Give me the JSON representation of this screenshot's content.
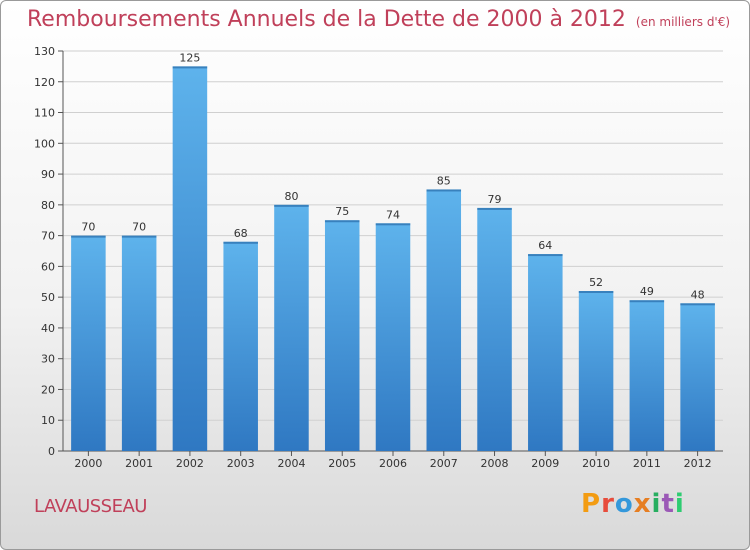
{
  "header": {
    "title": "Remboursements Annuels de la Dette de 2000 à 2012",
    "subtitle": "(en milliers d'€)"
  },
  "footer": {
    "commune": "LAVAUSSEAU",
    "logo_text": "Proxiti",
    "logo_colors": [
      "#f39c12",
      "#e74c3c",
      "#3498db",
      "#e67e22",
      "#27ae60",
      "#9b59b6",
      "#2ecc71"
    ]
  },
  "colors": {
    "bar": "#4a9fe0",
    "bar_light": "#5eb3ec",
    "bar_dark": "#2f78c2",
    "title": "#c0405a"
  },
  "chart_data": {
    "type": "bar",
    "title": "Remboursements Annuels de la Dette de 2000 à 2012",
    "subtitle": "(en milliers d'€)",
    "categories": [
      "2000",
      "2001",
      "2002",
      "2003",
      "2004",
      "2005",
      "2006",
      "2007",
      "2008",
      "2009",
      "2010",
      "2011",
      "2012"
    ],
    "values": [
      70,
      70,
      125,
      68,
      80,
      75,
      74,
      85,
      79,
      64,
      52,
      49,
      48
    ],
    "ylim": [
      0,
      130
    ],
    "yticks": [
      0,
      10,
      20,
      30,
      40,
      50,
      60,
      70,
      80,
      90,
      100,
      110,
      120,
      130
    ],
    "grid": true,
    "xlabel": "",
    "ylabel": ""
  }
}
